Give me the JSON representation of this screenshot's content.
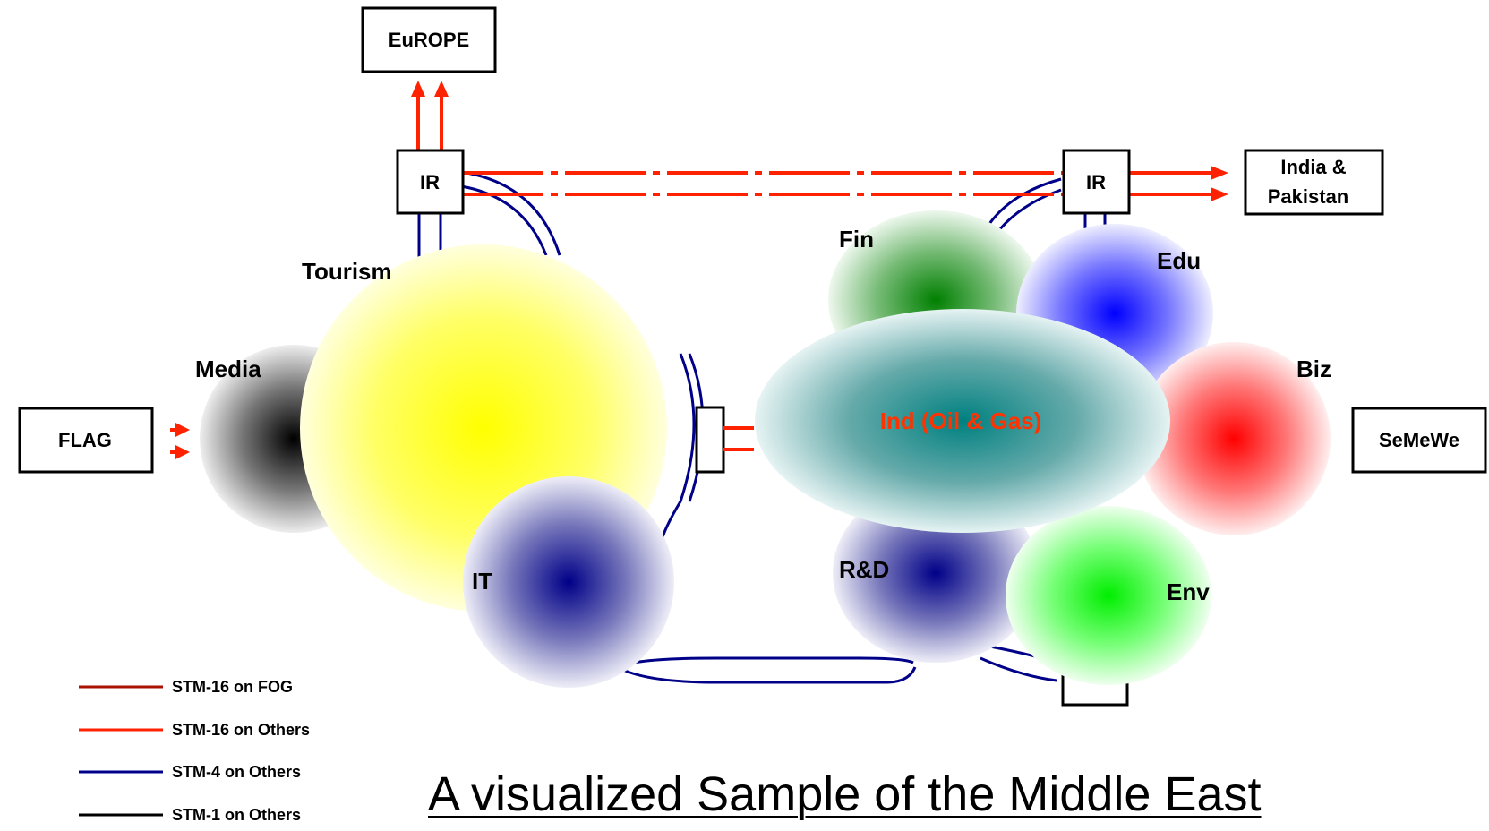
{
  "title": "A visualized Sample of the Middle East",
  "boxes": {
    "europe": "EuROPE",
    "ir_left": "IR",
    "ir_right": "IR",
    "india_line1": "India &",
    "india_line2": "Pakistan",
    "flag": "FLAG",
    "semewe": "SeMeWe"
  },
  "sectors": {
    "tourism": "Tourism",
    "media": "Media",
    "it": "IT",
    "fin": "Fin",
    "edu": "Edu",
    "biz": "Biz",
    "ind": "Ind (Oil & Gas)",
    "rd": "R&D",
    "env": "Env"
  },
  "legend": [
    {
      "label": "STM-16 on FOG",
      "color": "#aa1100"
    },
    {
      "label": "STM-16 on Others",
      "color": "#ff2200"
    },
    {
      "label": "STM-4 on Others",
      "color": "#000088"
    },
    {
      "label": "STM-1 on Others",
      "color": "#000000"
    }
  ],
  "colors": {
    "link_red": "#ff2200",
    "link_blue": "#000088",
    "tourism": "#ffff00",
    "media": "#000000",
    "it": "#000088",
    "fin": "#008000",
    "edu": "#0000ff",
    "biz": "#ff0000",
    "ind": "#008080",
    "rd": "#000088",
    "env": "#00ff00",
    "ind_label": "#ff3300"
  }
}
